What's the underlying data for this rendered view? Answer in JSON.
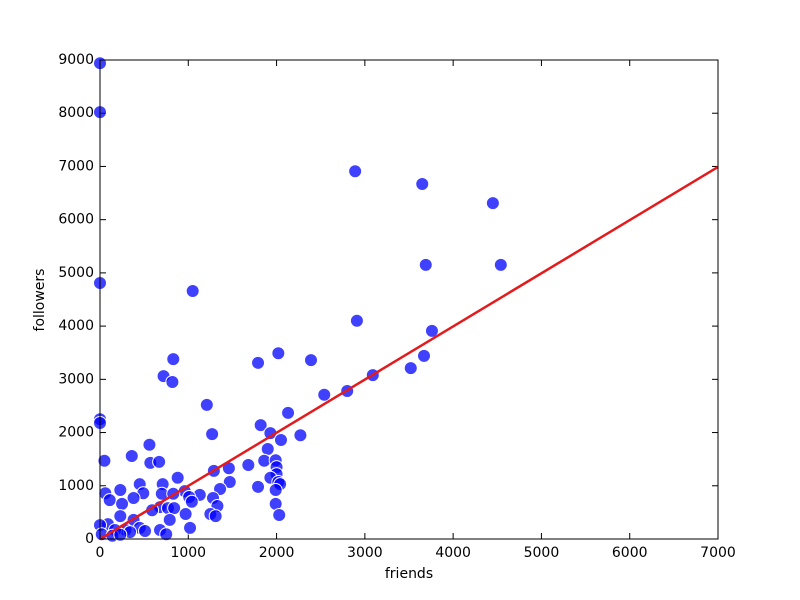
{
  "chart_data": {
    "type": "scatter",
    "x_label": "friends",
    "y_label": "followers",
    "x": [
      0,
      0,
      0,
      0,
      0,
      2890,
      3650,
      4450,
      3690,
      4540,
      1050,
      2910,
      3760,
      2020,
      830,
      2390,
      1790,
      3670,
      720,
      820,
      3090,
      3520,
      2540,
      2800,
      1210,
      2130,
      1820,
      1270,
      1930,
      2270,
      2050,
      560,
      1900,
      360,
      570,
      670,
      50,
      1860,
      1990,
      2000,
      1680,
      1460,
      1290,
      2000,
      880,
      1930,
      2020,
      2040,
      710,
      450,
      1470,
      1790,
      230,
      60,
      1360,
      1990,
      960,
      490,
      700,
      830,
      1130,
      1280,
      380,
      1010,
      110,
      1040,
      1990,
      250,
      1330,
      680,
      770,
      840,
      590,
      1250,
      970,
      2030,
      1310,
      230,
      380,
      90,
      790,
      1020,
      450,
      680,
      290,
      170,
      0,
      510,
      340,
      750,
      20,
      140,
      230
    ],
    "values": [
      8940,
      8020,
      4810,
      2250,
      2180,
      6910,
      6670,
      6310,
      5150,
      5150,
      4660,
      4100,
      3910,
      3490,
      3380,
      3360,
      3310,
      3440,
      3060,
      2950,
      3080,
      3210,
      2710,
      2780,
      2520,
      2370,
      2140,
      1970,
      1990,
      1950,
      1860,
      1770,
      1690,
      1560,
      1430,
      1450,
      1470,
      1470,
      1480,
      1350,
      1390,
      1330,
      1280,
      1220,
      1150,
      1150,
      1070,
      1030,
      1030,
      1030,
      1070,
      980,
      920,
      860,
      940,
      920,
      900,
      860,
      850,
      850,
      830,
      770,
      770,
      790,
      730,
      700,
      660,
      660,
      620,
      600,
      580,
      580,
      540,
      470,
      470,
      450,
      430,
      430,
      360,
      280,
      360,
      210,
      210,
      170,
      170,
      170,
      260,
      150,
      130,
      90,
      90,
      60,
      80
    ],
    "color": "#0000ff",
    "fit_line": {
      "x": [
        0,
        7000
      ],
      "y": [
        0,
        6990
      ],
      "color": "#e41a1c"
    },
    "xlim": [
      0,
      7000
    ],
    "xticks": [
      0,
      1000,
      2000,
      3000,
      4000,
      5000,
      6000,
      7000
    ],
    "ylim": [
      0,
      9000
    ],
    "yticks": [
      0,
      1000,
      2000,
      3000,
      4000,
      5000,
      6000,
      7000,
      8000,
      9000
    ],
    "grid": false
  }
}
